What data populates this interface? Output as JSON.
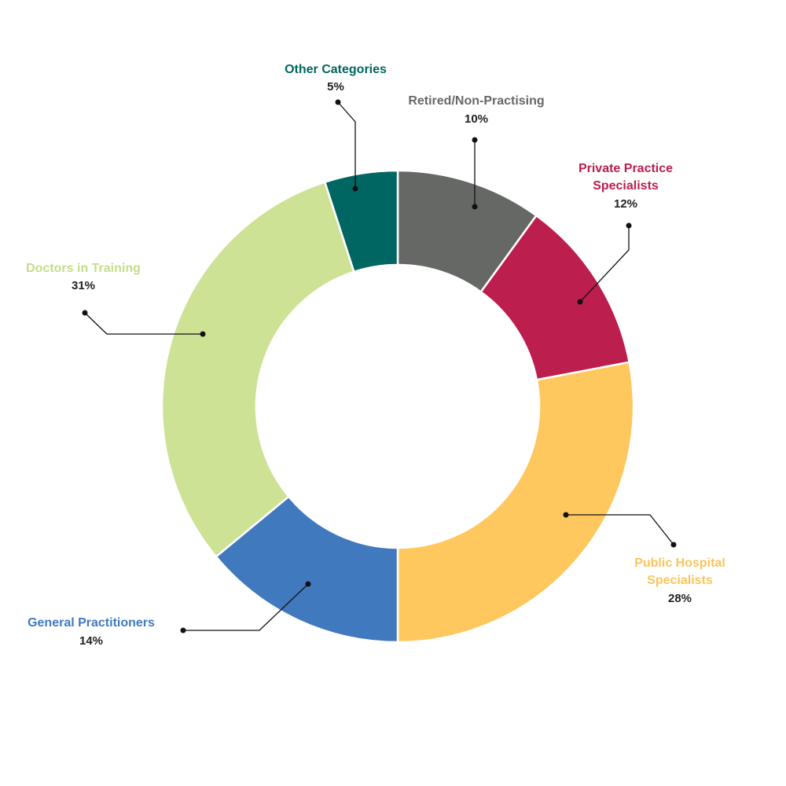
{
  "chart_data": {
    "type": "pie",
    "style": "donut",
    "title": "",
    "legend": "none",
    "slices": [
      {
        "name": "Retired/Non-Practising",
        "value": 10,
        "label": "10%",
        "color": "#666866"
      },
      {
        "name": "Private Practice Specialists",
        "name_lines": [
          "Private Practice",
          "Specialists"
        ],
        "value": 12,
        "label": "12%",
        "color": "#BC1E4D"
      },
      {
        "name": "Public Hospital Specialists",
        "name_lines": [
          "Public Hospital",
          "Specialists"
        ],
        "value": 28,
        "label": "28%",
        "color": "#FFC85E"
      },
      {
        "name": "General Practitioners",
        "value": 14,
        "label": "14%",
        "color": "#4179BE"
      },
      {
        "name": "Doctors in Training",
        "value": 31,
        "label": "31%",
        "color": "#CDE295"
      },
      {
        "name": "Other Categories",
        "value": 5,
        "label": "5%",
        "color": "#006661"
      }
    ]
  }
}
